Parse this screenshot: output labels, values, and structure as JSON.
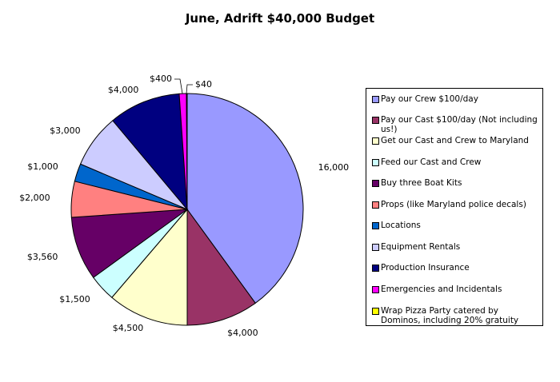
{
  "chart_data": {
    "type": "pie",
    "title": "June, Adrift $40,000 Budget",
    "slices": [
      {
        "name": "Pay our Crew $100/day",
        "value": 16000,
        "label": "16,000",
        "color": "#9999ff"
      },
      {
        "name": "Pay our Cast $100/day (Not including us!)",
        "value": 4000,
        "label": "$4,000",
        "color": "#993366"
      },
      {
        "name": "Get our Cast and Crew to Maryland",
        "value": 4500,
        "label": "$4,500",
        "color": "#ffffcc"
      },
      {
        "name": "Feed our Cast and Crew",
        "value": 1500,
        "label": "$1,500",
        "color": "#ccffff"
      },
      {
        "name": "Buy three Boat Kits",
        "value": 3560,
        "label": "$3,560",
        "color": "#660066"
      },
      {
        "name": "Props (like Maryland police decals)",
        "value": 2000,
        "label": "$2,000",
        "color": "#ff8080"
      },
      {
        "name": "Locations",
        "value": 1000,
        "label": "$1,000",
        "color": "#0066cc"
      },
      {
        "name": "Equipment Rentals",
        "value": 3000,
        "label": "$3,000",
        "color": "#ccccff"
      },
      {
        "name": "Production Insurance",
        "value": 4000,
        "label": "$4,000",
        "color": "#000080"
      },
      {
        "name": "Emergencies and Incidentals",
        "value": 400,
        "label": "$400",
        "color": "#ff00ff"
      },
      {
        "name": "Wrap Pizza Party catered by Dominos, including 20% gratuity",
        "value": 40,
        "label": "$40",
        "color": "#ffff00"
      }
    ],
    "legend_position": "right"
  }
}
